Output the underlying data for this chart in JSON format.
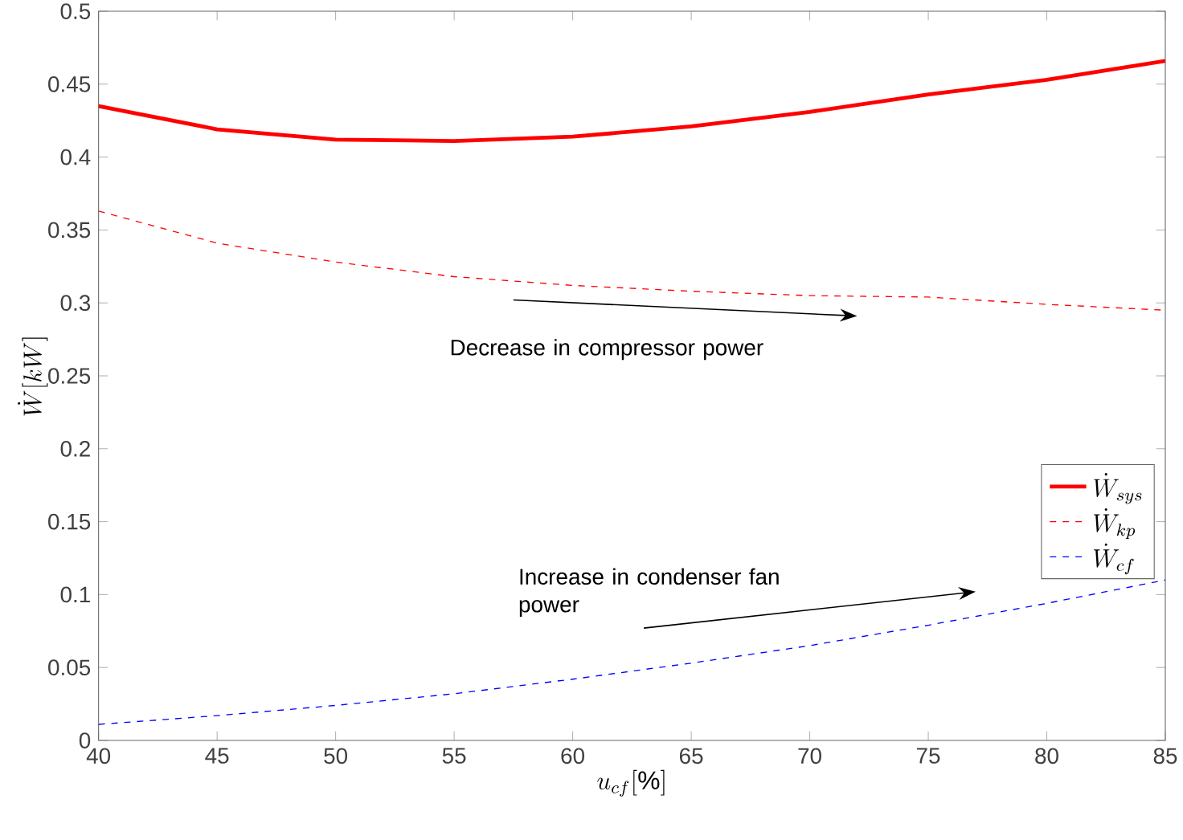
{
  "chart_data": {
    "type": "line",
    "xlabel": "u_{cf}[\\%]",
    "ylabel": "\\dot{W}[kW]",
    "x": [
      40,
      45,
      50,
      55,
      60,
      65,
      70,
      75,
      80,
      85
    ],
    "series": [
      {
        "name": "\\dot{W}_{sys}",
        "color": "#ff0000",
        "line_style": "solid",
        "values": [
          0.435,
          0.419,
          0.412,
          0.411,
          0.414,
          0.421,
          0.431,
          0.443,
          0.453,
          0.466
        ]
      },
      {
        "name": "\\dot{W}_{kp}",
        "color": "#ff0000",
        "line_style": "dashed",
        "values": [
          0.363,
          0.341,
          0.328,
          0.318,
          0.312,
          0.308,
          0.305,
          0.304,
          0.299,
          0.295
        ]
      },
      {
        "name": "\\dot{W}_{cf}",
        "color": "#0000ff",
        "line_style": "dashed",
        "values": [
          0.011,
          0.017,
          0.024,
          0.032,
          0.042,
          0.053,
          0.065,
          0.079,
          0.094,
          0.11
        ]
      }
    ],
    "xlim": [
      40,
      85
    ],
    "xticks": [
      40,
      45,
      50,
      55,
      60,
      65,
      70,
      75,
      80,
      85
    ],
    "ylim": [
      0,
      0.5
    ],
    "yticks": [
      0,
      0.05,
      0.1,
      0.15,
      0.2,
      0.25,
      0.3,
      0.35,
      0.4,
      0.45,
      0.5
    ],
    "legend": "right",
    "grid": false,
    "marker": "none",
    "annotations": [
      "Decrease in compressor power",
      "Increase in condenser fan power"
    ]
  }
}
